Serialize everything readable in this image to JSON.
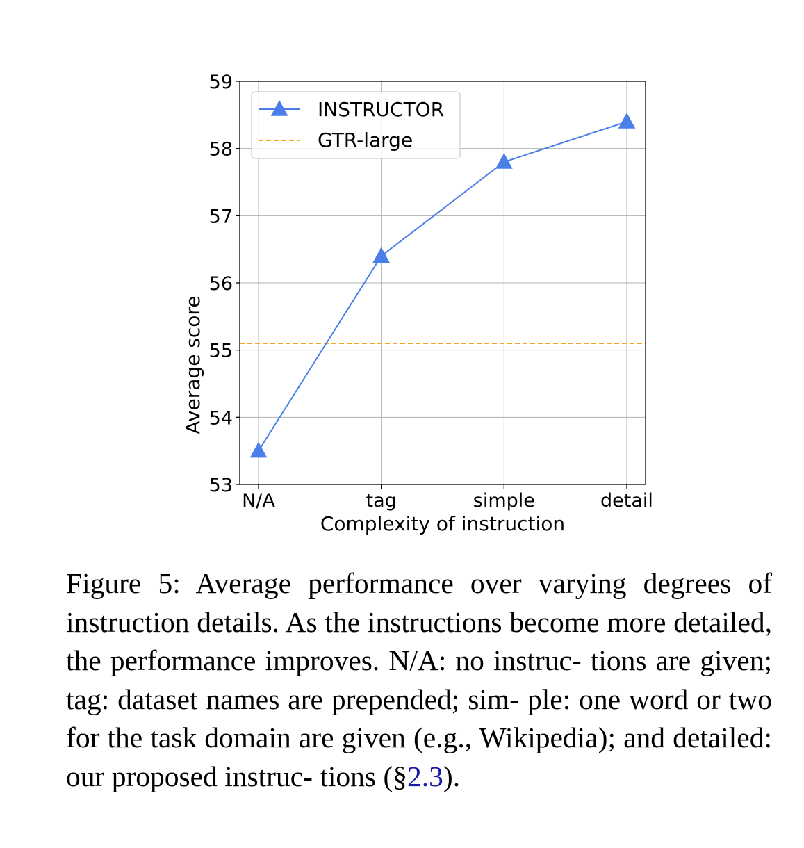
{
  "chart_data": {
    "type": "line",
    "categories": [
      "N/A",
      "tag",
      "simple",
      "detail"
    ],
    "series": [
      {
        "name": "INSTRUCTOR",
        "values": [
          53.5,
          56.4,
          57.8,
          58.4
        ],
        "color": "#4a7fea",
        "marker": "triangle-up"
      }
    ],
    "reference_lines": [
      {
        "name": "GTR-large",
        "value": 55.1,
        "color": "#f5a623",
        "style": "dashed"
      }
    ],
    "xlabel": "Complexity of instruction",
    "ylabel": "Average score",
    "ylim": [
      53,
      59
    ],
    "yticks": [
      53,
      54,
      55,
      56,
      57,
      58,
      59
    ],
    "grid": true,
    "legend_position": "top-left"
  },
  "caption": {
    "line1": "Figure 5: Average performance over varying degrees",
    "line2": "of instruction details. As the instructions become more",
    "line3": "detailed, the performance improves. N/A: no instruc-",
    "line4": "tions are given; tag: dataset names are prepended; sim-",
    "line5": "ple: one word or two for the task domain are given",
    "line6": "(e.g., Wikipedia); and detailed: our proposed instruc-",
    "line7_before": "tions (§",
    "line7_ref": "2.3",
    "line7_after": ")."
  }
}
